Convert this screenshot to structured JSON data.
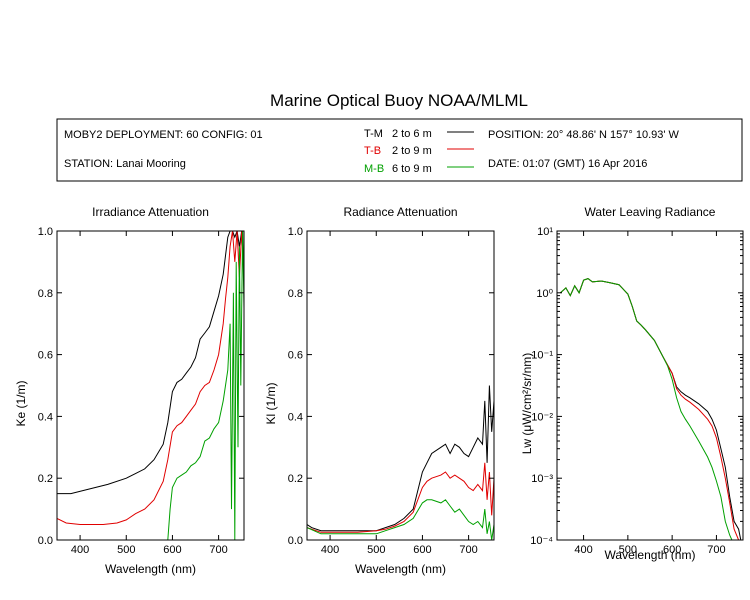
{
  "header": {
    "title": "Marine Optical Buoy NOAA/MLML",
    "deployment": "MOBY2 DEPLOYMENT: 60 CONFIG: 01",
    "station": "STATION: Lanai Mooring",
    "position": "POSITION: 20° 48.86' N   157° 10.93' W",
    "date": "DATE: 01:07 (GMT) 16 Apr 2016"
  },
  "legend": [
    {
      "key": "T-M",
      "range": "2 to 6  m",
      "color": "#000000"
    },
    {
      "key": "T-B",
      "range": "2 to 9  m",
      "color": "#e00000"
    },
    {
      "key": "M-B",
      "range": "6 to 9  m",
      "color": "#00a000"
    }
  ],
  "colors": {
    "T-M": "#000000",
    "T-B": "#e00000",
    "M-B": "#00a000"
  },
  "chart_data": [
    {
      "type": "line",
      "title": "Irradiance Attenuation",
      "xlabel": "Wavelength (nm)",
      "ylabel": "Ke  (1/m)",
      "xlim": [
        350,
        755
      ],
      "ylim": [
        0,
        1.0
      ],
      "xticks": [
        400,
        500,
        600,
        700
      ],
      "yticks": [
        0.0,
        0.2,
        0.4,
        0.6,
        0.8,
        1.0
      ],
      "ytick_labels": [
        "0.0",
        "0.2",
        "0.4",
        "0.6",
        "0.8",
        "1.0"
      ],
      "series": [
        {
          "name": "T-M",
          "x": [
            350,
            380,
            420,
            460,
            500,
            520,
            540,
            560,
            580,
            590,
            600,
            610,
            620,
            630,
            640,
            650,
            660,
            670,
            680,
            690,
            700,
            710,
            715,
            720,
            725,
            730,
            735,
            740,
            745,
            750,
            755
          ],
          "y": [
            0.15,
            0.15,
            0.165,
            0.18,
            0.2,
            0.215,
            0.23,
            0.26,
            0.31,
            0.38,
            0.48,
            0.51,
            0.52,
            0.54,
            0.56,
            0.59,
            0.65,
            0.67,
            0.69,
            0.74,
            0.79,
            0.86,
            0.92,
            0.98,
            1.0,
            1.0,
            0.98,
            1.0,
            0.95,
            1.0,
            0.86
          ]
        },
        {
          "name": "T-B",
          "x": [
            350,
            370,
            400,
            450,
            480,
            500,
            520,
            540,
            560,
            580,
            590,
            600,
            610,
            620,
            630,
            640,
            650,
            660,
            670,
            680,
            690,
            700,
            710,
            715,
            720,
            725,
            730,
            735,
            740,
            745,
            750,
            755
          ],
          "y": [
            0.07,
            0.055,
            0.05,
            0.05,
            0.055,
            0.065,
            0.085,
            0.1,
            0.13,
            0.19,
            0.26,
            0.35,
            0.37,
            0.38,
            0.4,
            0.42,
            0.44,
            0.48,
            0.5,
            0.51,
            0.55,
            0.6,
            0.7,
            0.78,
            0.85,
            0.95,
            1.0,
            0.9,
            1.0,
            0.85,
            1.0,
            0.88
          ]
        },
        {
          "name": "M-B",
          "x": [
            590,
            595,
            600,
            610,
            620,
            630,
            640,
            650,
            660,
            670,
            680,
            690,
            700,
            710,
            715,
            720,
            725,
            728,
            732,
            735,
            738,
            742,
            745,
            748,
            752,
            755
          ],
          "y": [
            0.0,
            0.1,
            0.17,
            0.2,
            0.21,
            0.22,
            0.24,
            0.25,
            0.27,
            0.32,
            0.33,
            0.36,
            0.38,
            0.45,
            0.5,
            0.55,
            0.7,
            0.1,
            0.8,
            0.0,
            0.9,
            0.3,
            0.95,
            0.5,
            1.0,
            0.75
          ]
        }
      ]
    },
    {
      "type": "line",
      "title": "Radiance Attenuation",
      "xlabel": "Wavelength (nm)",
      "ylabel": "Kl  (1/m)",
      "xlim": [
        350,
        755
      ],
      "ylim": [
        0,
        1.0
      ],
      "xticks": [
        400,
        500,
        600,
        700
      ],
      "yticks": [
        0.0,
        0.2,
        0.4,
        0.6,
        0.8,
        1.0
      ],
      "ytick_labels": [
        "0.0",
        "0.2",
        "0.4",
        "0.6",
        "0.8",
        "1.0"
      ],
      "series": [
        {
          "name": "T-M",
          "x": [
            350,
            360,
            380,
            420,
            460,
            500,
            520,
            540,
            560,
            580,
            600,
            610,
            620,
            640,
            650,
            660,
            670,
            680,
            690,
            700,
            710,
            720,
            730,
            735,
            740,
            745,
            750,
            755
          ],
          "y": [
            0.05,
            0.04,
            0.03,
            0.03,
            0.03,
            0.03,
            0.04,
            0.05,
            0.07,
            0.1,
            0.22,
            0.25,
            0.28,
            0.3,
            0.31,
            0.28,
            0.31,
            0.3,
            0.28,
            0.27,
            0.3,
            0.33,
            0.31,
            0.45,
            0.25,
            0.5,
            0.35,
            0.45
          ]
        },
        {
          "name": "T-B",
          "x": [
            350,
            380,
            420,
            460,
            500,
            520,
            540,
            560,
            580,
            600,
            610,
            620,
            640,
            650,
            660,
            670,
            680,
            690,
            700,
            710,
            720,
            730,
            735,
            740,
            745,
            750,
            755
          ],
          "y": [
            0.04,
            0.025,
            0.025,
            0.025,
            0.03,
            0.035,
            0.045,
            0.06,
            0.09,
            0.17,
            0.19,
            0.2,
            0.21,
            0.22,
            0.2,
            0.21,
            0.2,
            0.19,
            0.17,
            0.16,
            0.18,
            0.16,
            0.25,
            0.13,
            0.22,
            0.08,
            0.2
          ]
        },
        {
          "name": "M-B",
          "x": [
            350,
            380,
            420,
            460,
            500,
            520,
            540,
            560,
            580,
            600,
            610,
            620,
            640,
            650,
            660,
            670,
            680,
            690,
            700,
            710,
            720,
            730,
            735,
            740,
            745,
            750,
            755
          ],
          "y": [
            0.04,
            0.02,
            0.02,
            0.02,
            0.02,
            0.03,
            0.04,
            0.05,
            0.07,
            0.12,
            0.13,
            0.13,
            0.12,
            0.13,
            0.11,
            0.09,
            0.1,
            0.08,
            0.06,
            0.05,
            0.06,
            0.04,
            0.1,
            0.02,
            0.06,
            0.0,
            0.05
          ]
        }
      ]
    },
    {
      "type": "line",
      "title": "Water Leaving Radiance",
      "xlabel": "Wavelength (nm)",
      "ylabel": "Lw  (μW/cm²/sr/nm)",
      "xlim": [
        340,
        760
      ],
      "ylim": [
        0.0001,
        10
      ],
      "log_y": true,
      "xticks": [
        400,
        500,
        600,
        700
      ],
      "yticks": [
        0.0001,
        0.001,
        0.01,
        0.1,
        1,
        10
      ],
      "ytick_labels": [
        "10⁻⁴",
        "10⁻³",
        "10⁻²",
        "10⁻¹",
        "10⁰",
        "10¹"
      ],
      "series": [
        {
          "name": "T-M",
          "x": [
            348,
            360,
            370,
            380,
            390,
            400,
            410,
            420,
            440,
            460,
            480,
            500,
            510,
            520,
            530,
            540,
            560,
            580,
            600,
            610,
            620,
            630,
            640,
            660,
            680,
            690,
            700,
            710,
            720,
            730,
            740,
            750,
            755
          ],
          "y": [
            1.0,
            1.2,
            0.9,
            1.3,
            1.0,
            1.6,
            1.7,
            1.5,
            1.55,
            1.45,
            1.35,
            0.95,
            0.6,
            0.35,
            0.3,
            0.25,
            0.17,
            0.09,
            0.05,
            0.03,
            0.025,
            0.022,
            0.02,
            0.016,
            0.012,
            0.009,
            0.006,
            0.003,
            0.0015,
            0.0005,
            0.0002,
            0.00015,
            0.0001
          ]
        },
        {
          "name": "T-B",
          "x": [
            348,
            360,
            370,
            380,
            390,
            400,
            410,
            420,
            440,
            460,
            480,
            500,
            510,
            520,
            530,
            540,
            560,
            580,
            600,
            610,
            620,
            630,
            640,
            660,
            680,
            690,
            700,
            710,
            720,
            730,
            740,
            750,
            755
          ],
          "y": [
            1.0,
            1.2,
            0.9,
            1.3,
            1.0,
            1.6,
            1.7,
            1.5,
            1.55,
            1.45,
            1.35,
            0.95,
            0.6,
            0.35,
            0.3,
            0.25,
            0.17,
            0.09,
            0.05,
            0.028,
            0.022,
            0.019,
            0.017,
            0.013,
            0.009,
            0.007,
            0.0045,
            0.0022,
            0.001,
            0.0004,
            0.00015,
            0.0001,
            0.0001
          ]
        },
        {
          "name": "M-B",
          "x": [
            348,
            360,
            370,
            380,
            390,
            400,
            410,
            420,
            440,
            460,
            480,
            500,
            510,
            520,
            530,
            540,
            560,
            580,
            590,
            600,
            610,
            620,
            630,
            640,
            660,
            680,
            690,
            700,
            710,
            720,
            730,
            735
          ],
          "y": [
            1.0,
            1.2,
            0.9,
            1.3,
            1.0,
            1.6,
            1.7,
            1.5,
            1.55,
            1.45,
            1.35,
            0.95,
            0.6,
            0.35,
            0.3,
            0.25,
            0.17,
            0.09,
            0.065,
            0.04,
            0.02,
            0.012,
            0.009,
            0.007,
            0.004,
            0.0022,
            0.0015,
            0.0009,
            0.0005,
            0.0002,
            0.00012,
            0.0001
          ]
        }
      ]
    }
  ]
}
